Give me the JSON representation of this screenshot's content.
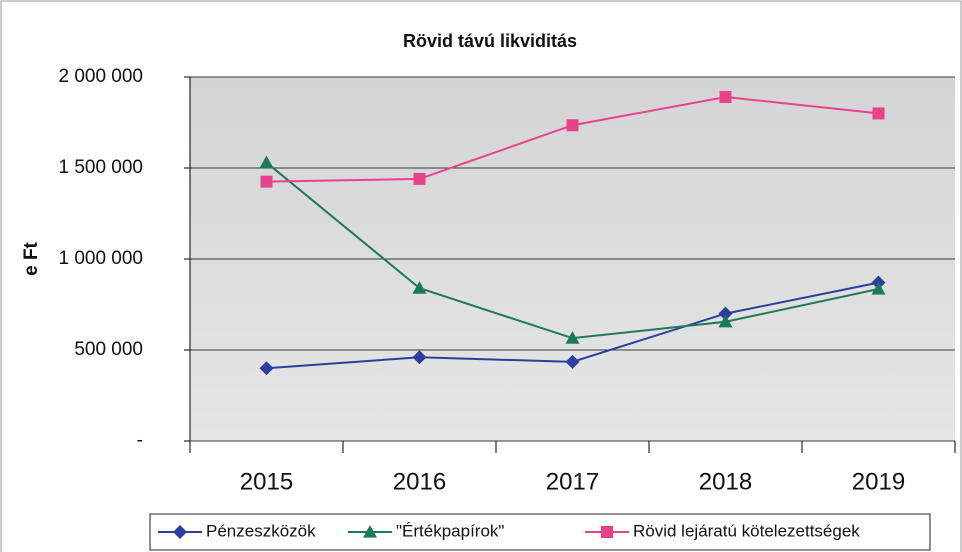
{
  "chart_data": {
    "type": "line",
    "title": "Rövid távú likviditás",
    "y_label": "e Ft",
    "categories": [
      "2015",
      "2016",
      "2017",
      "2018",
      "2019"
    ],
    "series": [
      {
        "name": "Pénzeszközök",
        "color": "#2b3f9e",
        "marker": "diamond",
        "values": [
          400000,
          460000,
          435000,
          700000,
          870000
        ]
      },
      {
        "name": "\"Értékpapírok\"",
        "color": "#1b7a5c",
        "marker": "triangle",
        "values": [
          1530000,
          840000,
          565000,
          655000,
          835000
        ]
      },
      {
        "name": "Rövid lejáratú kötelezettségek",
        "color": "#e8438a",
        "marker": "square",
        "values": [
          1425000,
          1440000,
          1735000,
          1890000,
          1800000
        ]
      }
    ],
    "ylim": [
      0,
      2000000
    ],
    "yticks": [
      {
        "value": 0,
        "label": "-"
      },
      {
        "value": 500000,
        "label": "500 000"
      },
      {
        "value": 1000000,
        "label": "1 000 000"
      },
      {
        "value": 1500000,
        "label": "1 500 000"
      },
      {
        "value": 2000000,
        "label": "2 000 000"
      }
    ],
    "grid": true,
    "legend": "bottom"
  }
}
